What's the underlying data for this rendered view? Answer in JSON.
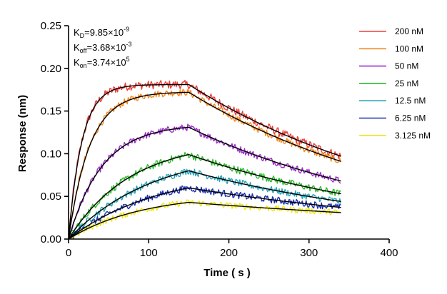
{
  "chart_data": {
    "type": "line",
    "title": "",
    "xlabel": "Time ( s )",
    "ylabel": "Response (nm)",
    "xlim": [
      0,
      400
    ],
    "ylim": [
      0,
      0.25
    ],
    "xticks": [
      "0",
      "100",
      "200",
      "300",
      "400"
    ],
    "yticks": [
      "0.00",
      "0.05",
      "0.10",
      "0.15",
      "0.20",
      "0.25"
    ],
    "grid": false,
    "legend_position": "top-right",
    "association_end_s": 150,
    "dissociation_end_s": 340,
    "kinetics": {
      "kd_text": "=9.85×10",
      "kd_exp": "-9",
      "koff_text": "=3.68×10",
      "koff_exp": "-3",
      "kon_text": "=3.74×10",
      "kon_exp": "5",
      "k_letter": "K",
      "kd_sub": "D",
      "koff_sub": "off",
      "kon_sub": "on"
    },
    "series": [
      {
        "name": "200 nM",
        "color": "#e8403c",
        "plateau": 0.181,
        "kobs": 0.06,
        "noise": 0.0045,
        "end": 0.097
      },
      {
        "name": "100 nM",
        "color": "#f28a1e",
        "plateau": 0.172,
        "kobs": 0.038,
        "noise": 0.004,
        "end": 0.091
      },
      {
        "name": "50 nM",
        "color": "#9b2fc8",
        "plateau": 0.131,
        "kobs": 0.024,
        "noise": 0.004,
        "end": 0.068
      },
      {
        "name": "25 nM",
        "color": "#2dbb2d",
        "plateau": 0.099,
        "kobs": 0.013,
        "noise": 0.0042,
        "end": 0.053
      },
      {
        "name": "12.5 nM",
        "color": "#2aa6b8",
        "plateau": 0.08,
        "kobs": 0.0095,
        "noise": 0.004,
        "end": 0.044
      },
      {
        "name": "6.25 nM",
        "color": "#1a2fb0",
        "plateau": 0.06,
        "kobs": 0.009,
        "noise": 0.004,
        "end": 0.037
      },
      {
        "name": "3.125 nM",
        "color": "#f0e81a",
        "plateau": 0.043,
        "kobs": 0.011,
        "noise": 0.0035,
        "end": 0.031
      }
    ],
    "fit_color": "#000000"
  }
}
